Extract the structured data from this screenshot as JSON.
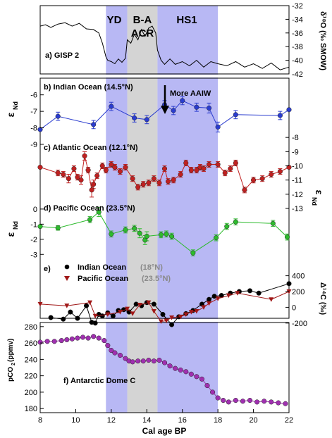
{
  "chart_data": {
    "type": "line",
    "x_axis": {
      "label": "Cal age BP",
      "range": [
        8,
        22
      ],
      "ticks": [
        "8",
        "10",
        "12",
        "14",
        "16",
        "18",
        "20",
        "22"
      ],
      "values": [
        8,
        10,
        12,
        14,
        16,
        18,
        20,
        22
      ]
    },
    "bands": [
      {
        "label": "YD",
        "from": 11.7,
        "to": 12.9,
        "color": "#b8b8f4"
      },
      {
        "label": "B-A\nACR",
        "label1": "B-A",
        "label2": "ACR",
        "from": 12.9,
        "to": 14.6,
        "color": "#d4d4d4"
      },
      {
        "label": "HS1",
        "from": 14.6,
        "to": 18.0,
        "color": "#b8b8f4"
      }
    ],
    "panels": [
      {
        "key": "a",
        "title": "a) GISP 2",
        "axis_side": "right",
        "ylabel_main": "δ¹⁸O (‰ SMOW)",
        "ylim": [
          -42,
          -32
        ],
        "ticks": [
          "-32",
          "-34",
          "-36",
          "-38",
          "-40",
          "-42"
        ],
        "tick_values": [
          -32,
          -34,
          -36,
          -38,
          -40,
          -42
        ],
        "series": [
          {
            "color": "#000000",
            "markers": false,
            "x": [
              8,
              8.3,
              8.6,
              9,
              9.4,
              9.8,
              10.2,
              10.6,
              11,
              11.3,
              11.5,
              11.6,
              11.7,
              11.8,
              12,
              12.2,
              12.4,
              12.6,
              12.8,
              12.9,
              13.1,
              13.3,
              13.5,
              13.7,
              13.9,
              14.1,
              14.3,
              14.5,
              14.6,
              14.8,
              15,
              15.3,
              15.6,
              16,
              16.4,
              16.8,
              17.2,
              17.6,
              18,
              18.5,
              19,
              19.5,
              20,
              20.5,
              21,
              21.5,
              22
            ],
            "y": [
              -35,
              -34.8,
              -35.2,
              -34.7,
              -34.5,
              -35,
              -34.6,
              -35.4,
              -35.5,
              -36,
              -37.5,
              -38.5,
              -39.5,
              -40,
              -40.2,
              -40.5,
              -39.8,
              -40.3,
              -39.7,
              -37,
              -37.5,
              -36.2,
              -37,
              -35.5,
              -36.5,
              -35.3,
              -35,
              -36,
              -38.5,
              -40,
              -40.6,
              -39.8,
              -40.6,
              -40.2,
              -40.8,
              -40,
              -41,
              -40.2,
              -40.5,
              -40.8,
              -40.2,
              -41,
              -40.5,
              -41.2,
              -40.4,
              -41.4,
              -41
            ]
          }
        ]
      },
      {
        "key": "b",
        "title": "b) Indian Ocean (14.5°N)",
        "axis_side": "left",
        "ylabel_main": "ε",
        "ylabel_sub": "Nd",
        "ylim": [
          -9,
          -5.8
        ],
        "ticks": [
          "-9",
          "-8",
          "-7",
          "-6"
        ],
        "tick_values": [
          -9,
          -8,
          -7,
          -6
        ],
        "annotation": "More AAIW",
        "series": [
          {
            "color": "#2a3ccf",
            "markers": true,
            "x": [
              8,
              9,
              11,
              12,
              13.3,
              14,
              15,
              15.5,
              16,
              16.8,
              17.5,
              18,
              19,
              21.5,
              22
            ],
            "y": [
              -8.1,
              -7.3,
              -7.8,
              -6.7,
              -7.4,
              -7.5,
              -6.6,
              -6.95,
              -6.35,
              -6.75,
              -6.8,
              -7.95,
              -7.2,
              -7.25,
              -6.9
            ],
            "err": [
              0,
              0.25,
              0.25,
              0.25,
              0.25,
              0.25,
              0.25,
              0.25,
              0.25,
              0.25,
              0.3,
              0.3,
              0.25,
              0.25,
              0
            ]
          }
        ]
      },
      {
        "key": "c",
        "title": "c) Atlantic Ocean (12.1°N)",
        "axis_side": "right",
        "ylabel_main": "ε",
        "ylabel_sub": "Nd",
        "ylim": [
          -13,
          -7
        ],
        "ticks": [
          "-13",
          "-12",
          "-11",
          "-10",
          "-9",
          "-8"
        ],
        "tick_values": [
          -13,
          -12,
          -11,
          -10,
          -9,
          -8
        ],
        "series": [
          {
            "color": "#c02020",
            "markers": true,
            "x": [
              8,
              9,
              9.3,
              9.6,
              9.9,
              10.1,
              10.3,
              10.5,
              10.7,
              10.9,
              11,
              11.2,
              11.5,
              11.7,
              12,
              12.2,
              12.5,
              12.8,
              13.2,
              13.5,
              13.8,
              14.1,
              14.4,
              14.7,
              15,
              15.2,
              15.5,
              15.9,
              16.2,
              16.5,
              16.8,
              17,
              17.2,
              17.5,
              18,
              18.4,
              18.7,
              19,
              19.5,
              20,
              20.5,
              21,
              21.5,
              22
            ],
            "y": [
              -10.1,
              -10.5,
              -10.6,
              -10.9,
              -10.2,
              -10.8,
              -11,
              -9.3,
              -10.3,
              -11.7,
              -11.3,
              -10.7,
              -10,
              -10.3,
              -9.9,
              -10.1,
              -10.4,
              -10.1,
              -10.9,
              -11.5,
              -11.3,
              -11.2,
              -10.9,
              -11.2,
              -10.2,
              -11.1,
              -11,
              -10.6,
              -9.8,
              -10.3,
              -10.3,
              -10.1,
              -10.2,
              -9.9,
              -9.9,
              -10.5,
              -10.2,
              -9.8,
              -11.7,
              -11,
              -10.9,
              -10.6,
              -10.4,
              -10.1
            ],
            "err": [
              0,
              0.2,
              0.2,
              0.3,
              0.2,
              0.2,
              0.3,
              0.3,
              0.2,
              0.5,
              0.3,
              0.2,
              0.2,
              0.2,
              0.2,
              0.2,
              0.2,
              0.2,
              0.2,
              0.2,
              0.2,
              0.2,
              0.2,
              0.2,
              0.2,
              0.2,
              0.2,
              0.2,
              0.2,
              0.2,
              0.2,
              0.2,
              0.2,
              0.2,
              0.2,
              0.2,
              0.2,
              0.2,
              0.2,
              0.2,
              0.2,
              0.2,
              0.2,
              0
            ]
          }
        ]
      },
      {
        "key": "d",
        "title": "d) Pacific Ocean (23.5°N)",
        "axis_side": "left",
        "ylabel_main": "ε",
        "ylabel_sub": "Nd",
        "ylim": [
          -3.5,
          0.6
        ],
        "ticks": [
          "0",
          "-1",
          "-2",
          "-3"
        ],
        "tick_values": [
          0,
          -1,
          -2,
          -3
        ],
        "series": [
          {
            "color": "#2dbb2d",
            "markers": true,
            "x": [
              8,
              9,
              10.8,
              11.3,
              12,
              12.8,
              13.3,
              13.6,
              13.9,
              14,
              14.8,
              15.1,
              15.4,
              16.6,
              17.9,
              18.5,
              19,
              21.1,
              21.9
            ],
            "y": [
              -1.15,
              -1.25,
              -0.7,
              -0.2,
              -1.65,
              -1.38,
              -1.28,
              -1.6,
              -2.05,
              -1.8,
              -1.7,
              -1.65,
              -1.8,
              -2.9,
              -1.9,
              -1.15,
              -0.85,
              -0.95,
              -1.85
            ],
            "err": [
              0,
              0.15,
              0.2,
              0.3,
              0.2,
              0.2,
              0.2,
              0.3,
              0.3,
              0.3,
              0.2,
              0.2,
              0.2,
              0.2,
              0.2,
              0.2,
              0.2,
              0.2,
              0.2
            ]
          }
        ]
      },
      {
        "key": "e",
        "axis_side": "right",
        "ylabel_main": "Δ¹⁴C (‰)",
        "ylim": [
          -300,
          450
        ],
        "ticks": [
          "400",
          "200",
          "0",
          "-200"
        ],
        "tick_values": [
          400,
          200,
          0,
          -200
        ],
        "legend": [
          {
            "marker": "circle",
            "label": "Indian Ocean",
            "suffix": "(18°N)",
            "color": "#000000"
          },
          {
            "marker": "triangle",
            "label": "Pacific Ocean",
            "suffix": "(23.5°N)",
            "color": "#a01818"
          }
        ],
        "series": [
          {
            "name": "Indian Ocean",
            "color": "#000000",
            "markers": "circle",
            "x": [
              8.6,
              9.3,
              9.7,
              10.1,
              10.6,
              10.9,
              11.1,
              11.3,
              11.5,
              11.8,
              12.1,
              12.4,
              12.7,
              13,
              13.4,
              13.7,
              14,
              14.4,
              14.9,
              15.4,
              15.8,
              16.2,
              16.6,
              17.1,
              17.5,
              17.8,
              18.2,
              18.7,
              19.2,
              19.8,
              20.3,
              22
            ],
            "y": [
              -130,
              -150,
              -60,
              -140,
              20,
              -190,
              -200,
              -90,
              -110,
              -70,
              -110,
              -40,
              -30,
              -60,
              40,
              20,
              60,
              40,
              -90,
              -220,
              -120,
              -80,
              -40,
              40,
              100,
              140,
              150,
              180,
              200,
              210,
              180,
              300
            ]
          },
          {
            "name": "Pacific Ocean",
            "color": "#a01818",
            "markers": "triangle",
            "x": [
              8,
              9.5,
              10.8,
              11.1,
              11.8,
              12.5,
              12.9,
              13.2,
              13.6,
              14.1,
              14.4,
              14.8,
              15.1,
              15.4,
              15.9,
              16.2,
              16.5,
              16.8,
              17.2,
              17.5,
              18,
              18.6,
              19.1,
              21,
              22
            ],
            "y": [
              40,
              20,
              60,
              -110,
              -90,
              -60,
              -20,
              -80,
              30,
              60,
              -50,
              -180,
              -170,
              -130,
              -120,
              -90,
              -60,
              -50,
              0,
              50,
              110,
              150,
              180,
              100,
              200
            ]
          }
        ]
      },
      {
        "key": "f",
        "title": "f) Antarctic Dome C",
        "axis_side": "left",
        "ylabel_main": "pCO",
        "ylabel_sub": "2",
        "ylabel_tail": "(ppmv)",
        "ylim": [
          175,
          285
        ],
        "ticks": [
          "280",
          "260",
          "240",
          "220",
          "200",
          "180"
        ],
        "tick_values": [
          280,
          260,
          240,
          220,
          200,
          180
        ],
        "series": [
          {
            "color": "#a030b0",
            "markers": true,
            "x": [
              8,
              8.4,
              8.8,
              9.2,
              9.5,
              9.8,
              10.1,
              10.4,
              10.7,
              11,
              11.3,
              11.6,
              11.8,
              12,
              12.2,
              12.5,
              12.8,
              13,
              13.2,
              13.5,
              13.8,
              14.1,
              14.4,
              14.7,
              15,
              15.3,
              15.6,
              15.9,
              16.2,
              16.5,
              16.8,
              17.1,
              17.4,
              17.7,
              18,
              18.3,
              18.6,
              19,
              19.4,
              19.8,
              20.2,
              20.6,
              21,
              21.4,
              21.8
            ],
            "y": [
              261,
              262,
              262,
              263,
              264,
              265,
              266,
              267,
              266,
              268,
              266,
              263,
              257,
              251,
              248,
              245,
              241,
              238,
              237,
              238,
              238,
              239,
              238,
              239,
              236,
              232,
              229,
              227,
              225,
              222,
              219,
              216,
              208,
              200,
              193,
              190,
              188,
              190,
              189,
              190,
              188,
              189,
              188,
              187,
              186
            ]
          }
        ]
      }
    ]
  }
}
